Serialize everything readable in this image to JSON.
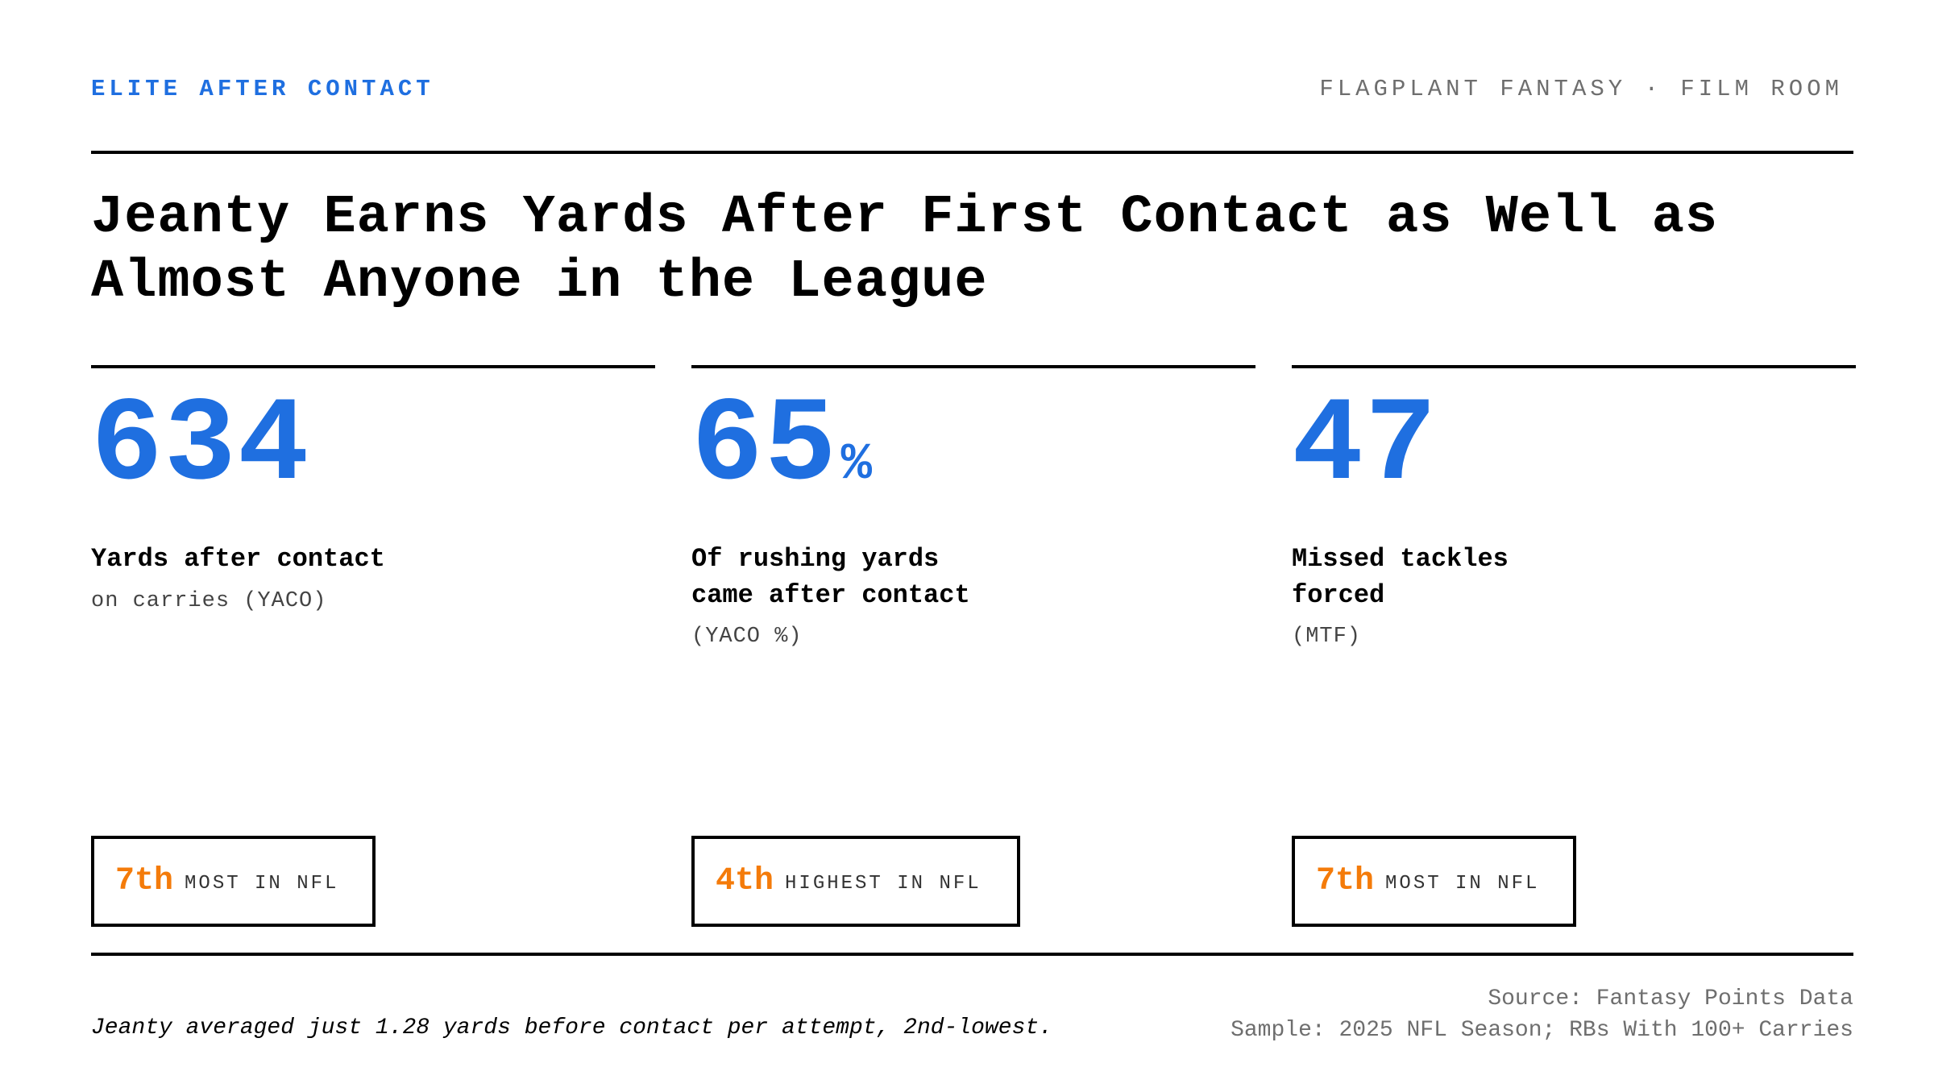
{
  "header": {
    "kicker": "ELITE AFTER CONTACT",
    "brand": "FLAGPLANT FANTASY · FILM ROOM"
  },
  "title": "Jeanty Earns Yards After First Contact as Well as Almost Anyone in the League",
  "stats": [
    {
      "value": "634",
      "unit": "",
      "label_lines": [
        "Yards after contact"
      ],
      "sub": "on carries (YACO)",
      "rank": "7th",
      "rank_text": "MOST IN NFL"
    },
    {
      "value": "65",
      "unit": "%",
      "label_lines": [
        "Of rushing yards",
        "came after contact"
      ],
      "sub": "(YACO %)",
      "rank": "4th",
      "rank_text": "HIGHEST IN NFL"
    },
    {
      "value": "47",
      "unit": "",
      "label_lines": [
        "Missed tackles",
        "forced"
      ],
      "sub": "(MTF)",
      "rank": "7th",
      "rank_text": "MOST IN NFL"
    }
  ],
  "footer": {
    "note": "Jeanty averaged just 1.28 yards before contact per attempt, 2nd-lowest.",
    "source": "Source: Fantasy Points Data",
    "sample": "Sample: 2025 NFL Season; RBs With 100+ Carries"
  },
  "colors": {
    "accent_blue": "#1f6fe0",
    "accent_orange": "#f47b0a",
    "muted_gray": "#6e6e6e"
  }
}
